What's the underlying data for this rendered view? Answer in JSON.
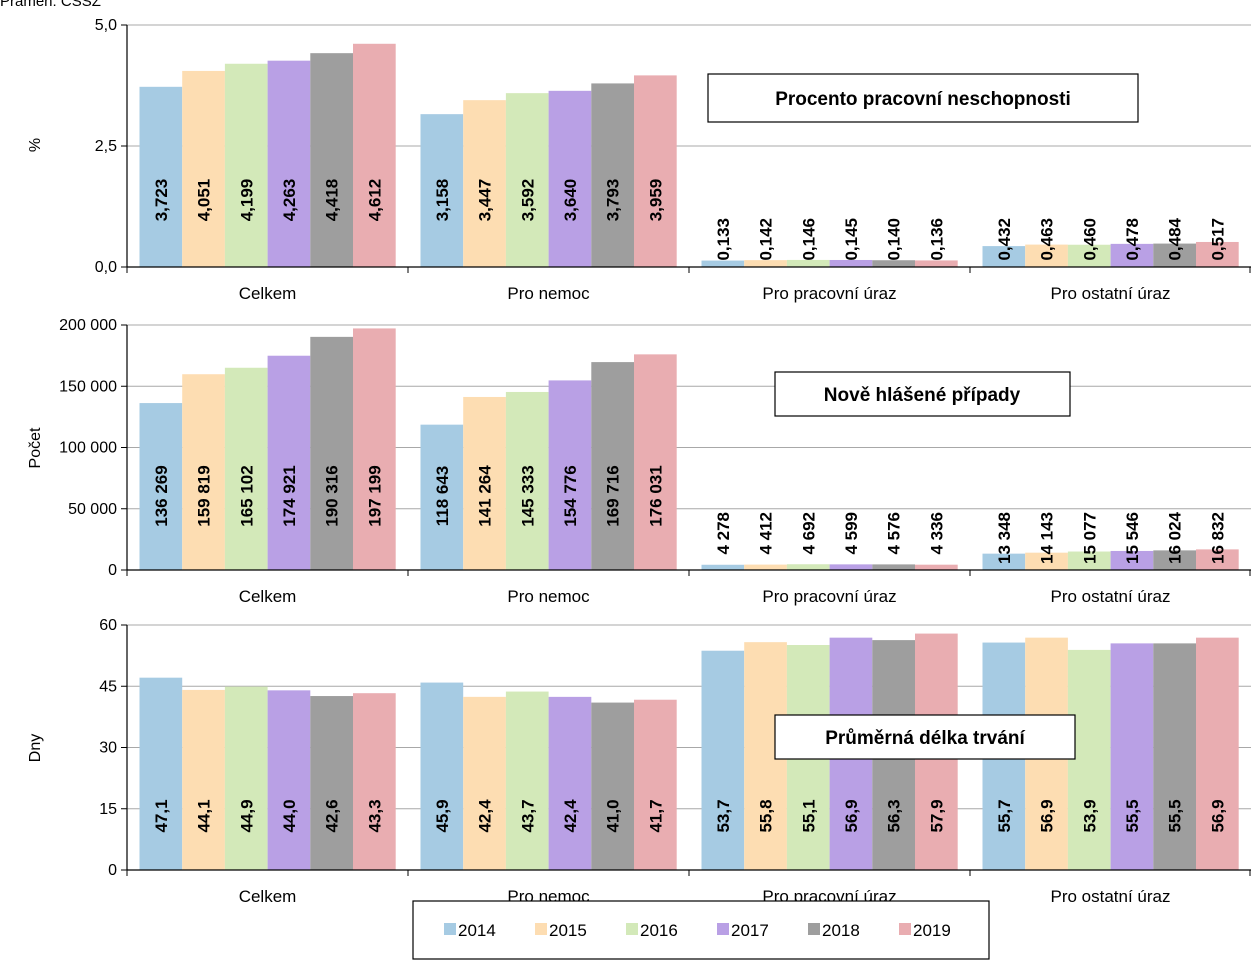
{
  "source_note": "Pramen: ČSSZ",
  "legend": {
    "items": [
      {
        "label": "2014",
        "color": "#A6CBE3"
      },
      {
        "label": "2015",
        "color": "#FDDDB2"
      },
      {
        "label": "2016",
        "color": "#D3E9B9"
      },
      {
        "label": "2017",
        "color": "#B9A0E5"
      },
      {
        "label": "2018",
        "color": "#9E9E9E"
      },
      {
        "label": "2019",
        "color": "#E9ADB1"
      }
    ]
  },
  "chart_data": [
    {
      "type": "bar",
      "title": "Procento pracovní neschopnosti",
      "ylabel": "%",
      "ylim": [
        0,
        5
      ],
      "yticks": [
        "0,0",
        "2,5",
        "5,0"
      ],
      "categories": [
        "Celkem",
        "Pro nemoc",
        "Pro pracovní úraz",
        "Pro ostatní úraz"
      ],
      "series": [
        {
          "name": "2014",
          "values": [
            3.723,
            3.158,
            0.133,
            0.432
          ],
          "labels": [
            "3,723",
            "3,158",
            "0,133",
            "0,432"
          ]
        },
        {
          "name": "2015",
          "values": [
            4.051,
            3.447,
            0.142,
            0.463
          ],
          "labels": [
            "4,051",
            "3,447",
            "0,142",
            "0,463"
          ]
        },
        {
          "name": "2016",
          "values": [
            4.199,
            3.592,
            0.146,
            0.46
          ],
          "labels": [
            "4,199",
            "3,592",
            "0,146",
            "0,460"
          ]
        },
        {
          "name": "2017",
          "values": [
            4.263,
            3.64,
            0.145,
            0.478
          ],
          "labels": [
            "4,263",
            "3,640",
            "0,145",
            "0,478"
          ]
        },
        {
          "name": "2018",
          "values": [
            4.418,
            3.793,
            0.14,
            0.484
          ],
          "labels": [
            "4,418",
            "3,793",
            "0,140",
            "0,484"
          ]
        },
        {
          "name": "2019",
          "values": [
            4.612,
            3.959,
            0.136,
            0.517
          ],
          "labels": [
            "4,612",
            "3,959",
            "0,136",
            "0,517"
          ]
        }
      ],
      "grid": true,
      "legend": "bottom"
    },
    {
      "type": "bar",
      "title": "Nově hlášené případy",
      "ylabel": "Počet",
      "ylim": [
        0,
        200000
      ],
      "yticks": [
        "0",
        "50 000",
        "100 000",
        "150 000",
        "200 000"
      ],
      "categories": [
        "Celkem",
        "Pro nemoc",
        "Pro pracovní úraz",
        "Pro ostatní úraz"
      ],
      "series": [
        {
          "name": "2014",
          "values": [
            136269,
            118643,
            4278,
            13348
          ],
          "labels": [
            "136 269",
            "118 643",
            "4 278",
            "13 348"
          ]
        },
        {
          "name": "2015",
          "values": [
            159819,
            141264,
            4412,
            14143
          ],
          "labels": [
            "159 819",
            "141 264",
            "4 412",
            "14 143"
          ]
        },
        {
          "name": "2016",
          "values": [
            165102,
            145333,
            4692,
            15077
          ],
          "labels": [
            "165 102",
            "145 333",
            "4 692",
            "15 077"
          ]
        },
        {
          "name": "2017",
          "values": [
            174921,
            154776,
            4599,
            15546
          ],
          "labels": [
            "174 921",
            "154 776",
            "4 599",
            "15 546"
          ]
        },
        {
          "name": "2018",
          "values": [
            190316,
            169716,
            4576,
            16024
          ],
          "labels": [
            "190 316",
            "169 716",
            "4 576",
            "16 024"
          ]
        },
        {
          "name": "2019",
          "values": [
            197199,
            176031,
            4336,
            16832
          ],
          "labels": [
            "197 199",
            "176 031",
            "4 336",
            "16 832"
          ]
        }
      ],
      "grid": true,
      "legend": "bottom"
    },
    {
      "type": "bar",
      "title": "Průměrná délka trvání",
      "ylabel": "Dny",
      "ylim": [
        0,
        60
      ],
      "yticks": [
        "0",
        "15",
        "30",
        "45",
        "60"
      ],
      "categories": [
        "Celkem",
        "Pro nemoc",
        "Pro pracovní úraz",
        "Pro ostatní úraz"
      ],
      "series": [
        {
          "name": "2014",
          "values": [
            47.1,
            45.9,
            53.7,
            55.7
          ],
          "labels": [
            "47,1",
            "45,9",
            "53,7",
            "55,7"
          ]
        },
        {
          "name": "2015",
          "values": [
            44.1,
            42.4,
            55.8,
            56.9
          ],
          "labels": [
            "44,1",
            "42,4",
            "55,8",
            "56,9"
          ]
        },
        {
          "name": "2016",
          "values": [
            44.9,
            43.7,
            55.1,
            53.9
          ],
          "labels": [
            "44,9",
            "43,7",
            "55,1",
            "53,9"
          ]
        },
        {
          "name": "2017",
          "values": [
            44.0,
            42.4,
            56.9,
            55.5
          ],
          "labels": [
            "44,0",
            "42,4",
            "56,9",
            "55,5"
          ]
        },
        {
          "name": "2018",
          "values": [
            42.6,
            41.0,
            56.3,
            55.5
          ],
          "labels": [
            "42,6",
            "41,0",
            "56,3",
            "55,5"
          ]
        },
        {
          "name": "2019",
          "values": [
            43.3,
            41.7,
            57.9,
            56.9
          ],
          "labels": [
            "43,3",
            "41,7",
            "57,9",
            "56,9"
          ]
        }
      ],
      "grid": true,
      "legend": "bottom"
    }
  ]
}
